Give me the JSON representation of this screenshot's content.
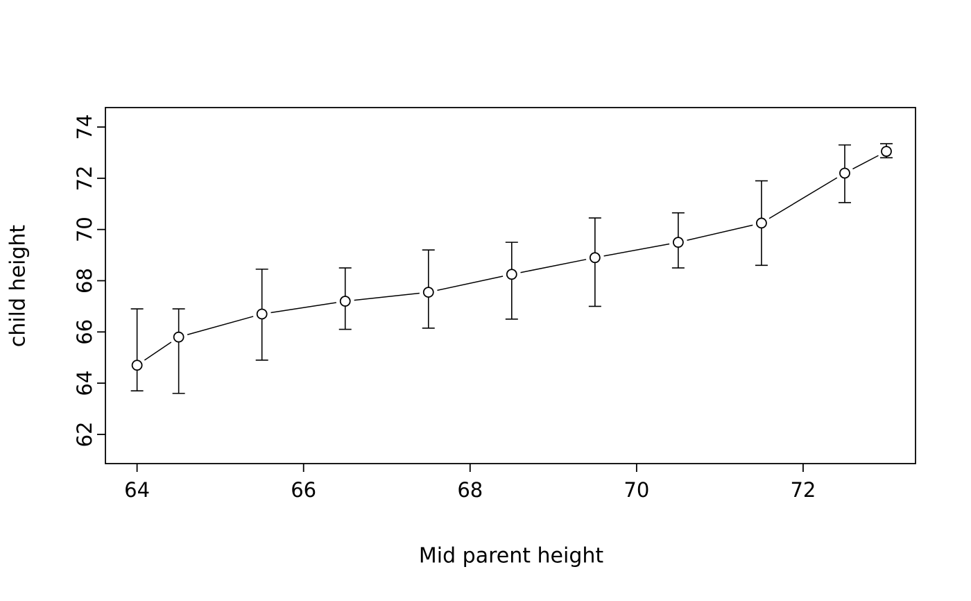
{
  "chart_data": {
    "type": "scatter",
    "subtype": "points-with-error-bars-connected",
    "title": "",
    "xlabel": "Mid parent height",
    "ylabel": "child height",
    "x": [
      64,
      64.5,
      65.5,
      66.5,
      67.5,
      68.5,
      69.5,
      70.5,
      71.5,
      72.5,
      73
    ],
    "y": [
      64.7,
      65.8,
      66.7,
      67.2,
      67.55,
      68.25,
      68.9,
      69.5,
      70.25,
      72.2,
      73.05
    ],
    "y_lo": [
      63.7,
      63.6,
      64.9,
      66.1,
      66.15,
      66.5,
      67.0,
      68.5,
      68.6,
      71.05,
      72.8
    ],
    "y_hi": [
      66.9,
      66.9,
      68.45,
      68.5,
      69.2,
      69.5,
      70.45,
      70.65,
      71.9,
      73.3,
      73.35
    ],
    "x_ticks": [
      64,
      66,
      68,
      70,
      72
    ],
    "y_ticks": [
      62,
      64,
      66,
      68,
      70,
      72,
      74
    ],
    "xlim": [
      63.62,
      73.35
    ],
    "ylim": [
      60.86,
      74.76
    ],
    "grid": false,
    "legend": null,
    "point_style": "open-circle",
    "line_style": "segments-between-points",
    "color": "#000000",
    "background": "#ffffff"
  }
}
